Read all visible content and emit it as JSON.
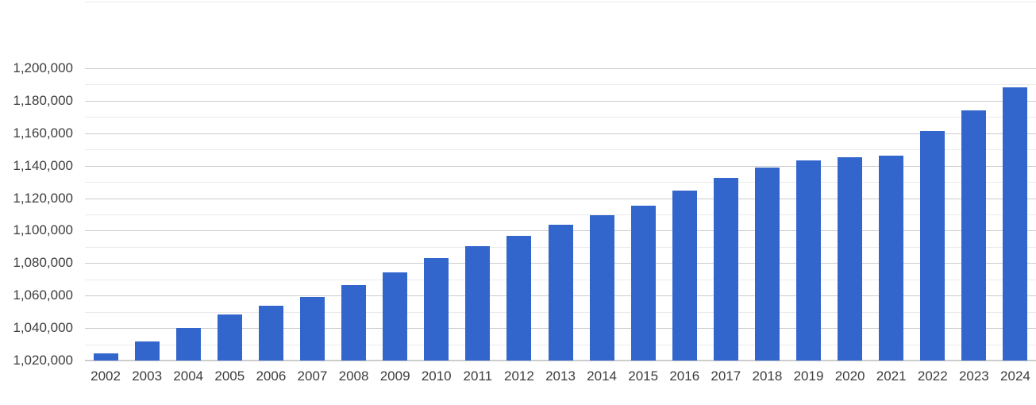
{
  "chart_data": {
    "type": "bar",
    "title": "",
    "xlabel": "",
    "ylabel": "",
    "legend": "none",
    "grid": "major and minor horizontal gridlines",
    "categories": [
      "2002",
      "2003",
      "2004",
      "2005",
      "2006",
      "2007",
      "2008",
      "2009",
      "2010",
      "2011",
      "2012",
      "2013",
      "2014",
      "2015",
      "2016",
      "2017",
      "2018",
      "2019",
      "2020",
      "2021",
      "2022",
      "2023",
      "2024"
    ],
    "values": [
      1024400,
      1031600,
      1040000,
      1048600,
      1053700,
      1059200,
      1066600,
      1074500,
      1083100,
      1090500,
      1096700,
      1103700,
      1109700,
      1115500,
      1124500,
      1132500,
      1138800,
      1143000,
      1145300,
      1146300,
      1161400,
      1174000,
      1188000
    ],
    "ylim": [
      1020000,
      1242000
    ],
    "y_major_step": 20000,
    "y_ticks": [
      {
        "value": 1020000,
        "label": "1,020,000"
      },
      {
        "value": 1040000,
        "label": "1,040,000"
      },
      {
        "value": 1060000,
        "label": "1,060,000"
      },
      {
        "value": 1080000,
        "label": "1,080,000"
      },
      {
        "value": 1100000,
        "label": "1,100,000"
      },
      {
        "value": 1120000,
        "label": "1,120,000"
      },
      {
        "value": 1140000,
        "label": "1,140,000"
      },
      {
        "value": 1160000,
        "label": "1,160,000"
      },
      {
        "value": 1180000,
        "label": "1,180,000"
      },
      {
        "value": 1200000,
        "label": "1,200,000"
      }
    ],
    "y_minor_tick_values": [
      1030000,
      1050000,
      1070000,
      1090000,
      1110000,
      1130000,
      1150000,
      1170000,
      1190000
    ],
    "colors": {
      "bar": "#3366cc",
      "grid_major": "#cccccc",
      "grid_minor": "#ebebeb",
      "grid_top_edge": "#ededed",
      "baseline": "#cccccc",
      "axis_text": "#3d3d3d"
    }
  }
}
